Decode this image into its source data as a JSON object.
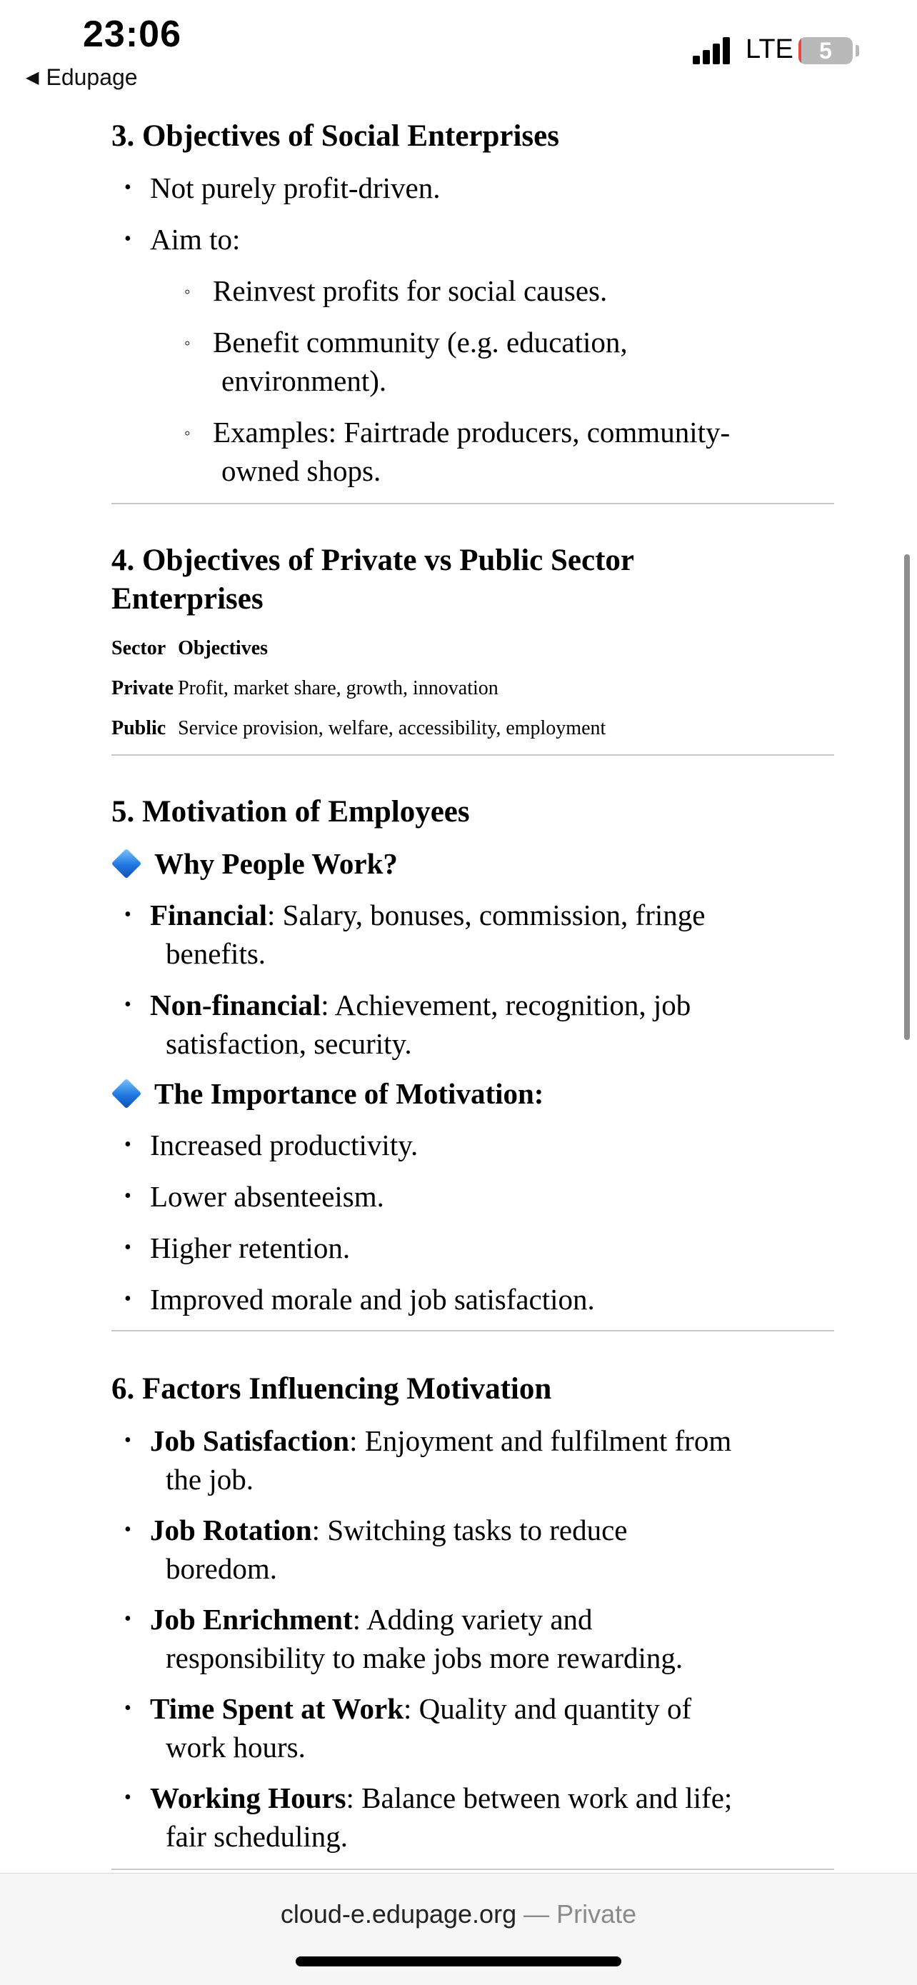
{
  "status_bar": {
    "time": "23:06",
    "back_label": "Edupage",
    "network": "LTE",
    "battery_level": "5",
    "battery_fraction": 0.05
  },
  "section3": {
    "heading": "3. Objectives of Social Enterprises",
    "items": [
      "Not purely profit-driven.",
      "Aim to:"
    ],
    "subitems": [
      [
        "Reinvest profits for social causes."
      ],
      [
        "Benefit community (e.g. education,",
        "environment)."
      ],
      [
        "Examples: Fairtrade producers, community-",
        "owned shops."
      ]
    ]
  },
  "section4": {
    "heading_line1": "4. Objectives of Private vs Public Sector",
    "heading_line2": "Enterprises",
    "table": {
      "headers": [
        "Sector",
        "Objectives"
      ],
      "rows": [
        [
          "Private",
          "Profit, market share, growth, innovation"
        ],
        [
          "Public",
          "Service provision, welfare, accessibility, employment"
        ]
      ]
    }
  },
  "section5": {
    "heading": "5. Motivation of Employees",
    "why_heading": "Why People Work?",
    "why_items": [
      {
        "term": "Financial",
        "rest1": ": Salary, bonuses, commission, fringe",
        "rest2": "benefits."
      },
      {
        "term": "Non-financial",
        "rest1": ": Achievement, recognition, job",
        "rest2": "satisfaction, security."
      }
    ],
    "importance_heading": "The Importance of Motivation:",
    "importance_items": [
      "Increased productivity.",
      "Lower absenteeism.",
      "Higher retention.",
      "Improved morale and job satisfaction."
    ]
  },
  "section6": {
    "heading": "6. Factors Influencing Motivation",
    "items": [
      {
        "term": "Job Satisfaction",
        "rest1": ": Enjoyment and fulfilment from",
        "rest2": "the job."
      },
      {
        "term": "Job Rotation",
        "rest1": ": Switching tasks to reduce",
        "rest2": "boredom."
      },
      {
        "term": "Job Enrichment",
        "rest1": ": Adding variety and",
        "rest2": "responsibility to make jobs more rewarding."
      },
      {
        "term": "Time Spent at Work",
        "rest1": ": Quality and quantity of",
        "rest2": "work hours."
      },
      {
        "term": "Working Hours",
        "rest1": ": Balance between work and life;",
        "rest2": "fair scheduling."
      }
    ]
  },
  "browser": {
    "url": "cloud-e.edupage.org",
    "separator": "—",
    "mode": "Private"
  }
}
